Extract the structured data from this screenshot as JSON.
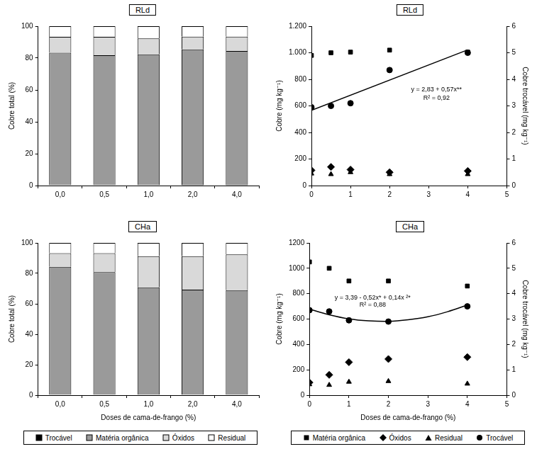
{
  "chart_data": [
    {
      "type": "bar",
      "title": "RLd",
      "stacked": true,
      "grid": false,
      "categories": [
        "0,0",
        "0,5",
        "1,0",
        "2,0",
        "4,0"
      ],
      "y_label": "Cobre total (%)",
      "ylim": [
        0,
        100
      ],
      "yticks": [
        0,
        20,
        40,
        60,
        80,
        100
      ],
      "series": [
        {
          "name": "Trocável",
          "color": "#000000",
          "values": [
            0.3,
            0.3,
            0.3,
            0.4,
            0.5
          ]
        },
        {
          "name": "Matéria orgânica",
          "color": "#9a9a9a",
          "values": [
            83,
            81.5,
            82,
            85,
            84
          ]
        },
        {
          "name": "Óxidos",
          "color": "#d9d9d9",
          "values": [
            10,
            11.5,
            10,
            8,
            9
          ]
        },
        {
          "name": "Residual",
          "color": "#ffffff",
          "values": [
            6.7,
            6.7,
            7.7,
            6.6,
            6.5
          ]
        }
      ]
    },
    {
      "type": "scatter",
      "title": "RLd",
      "grid": false,
      "x": [
        0,
        0.5,
        1,
        2,
        4
      ],
      "xlim": [
        0,
        5
      ],
      "xticks": [
        0,
        1,
        2,
        3,
        4,
        5
      ],
      "y_label": "Cobre (mg kg⁻¹)",
      "ylim": [
        0,
        1200
      ],
      "yticks": [
        0,
        200,
        400,
        600,
        800,
        {
          "value": 1000,
          "label": "1.000"
        },
        {
          "value": 1200,
          "label": "1.200"
        }
      ],
      "y2_label": "Cobre trocável (mg kg⁻¹)",
      "y2lim": [
        0,
        6
      ],
      "y2ticks": [
        0,
        1,
        2,
        3,
        4,
        5,
        6
      ],
      "series": [
        {
          "name": "Matéria orgânica",
          "color": "#000000",
          "marker": "square",
          "values": [
            980,
            1000,
            1005,
            1020,
            1005
          ]
        },
        {
          "name": "Óxidos",
          "color": "#000000",
          "marker": "diamond",
          "values": [
            115,
            140,
            120,
            100,
            110
          ]
        },
        {
          "name": "Residual",
          "color": "#000000",
          "marker": "triangle",
          "values": [
            90,
            85,
            100,
            85,
            85
          ]
        },
        {
          "name": "Trocável",
          "color": "#000000",
          "marker": "circle",
          "axis": "y2",
          "values": [
            2.95,
            3.0,
            3.1,
            4.35,
            5.0
          ]
        },
        {
          "type": "line",
          "color": "#000000",
          "line_style": "solid",
          "axis": "y2",
          "x": [
            0,
            4
          ],
          "values": [
            2.83,
            5.11
          ]
        }
      ],
      "annotations": [
        {
          "text": "y = 2,83 + 0,57x**",
          "x": 3.2,
          "y": 3.6,
          "axis": "y2"
        },
        {
          "text": "R² = 0,92",
          "x": 3.2,
          "y": 3.3,
          "axis": "y2"
        }
      ]
    },
    {
      "type": "bar",
      "title": "CHa",
      "stacked": true,
      "grid": false,
      "categories": [
        "0,0",
        "0,5",
        "1,0",
        "2,0",
        "4,0"
      ],
      "x_label": "Doses de cama-de-frango (%)",
      "y_label": "Cobre total (%)",
      "ylim": [
        0,
        100
      ],
      "yticks": [
        0,
        20,
        40,
        60,
        80,
        100
      ],
      "series": [
        {
          "name": "Trocável",
          "color": "#000000",
          "values": [
            0.3,
            0.3,
            0.3,
            0.3,
            0.4
          ]
        },
        {
          "name": "Matéria orgânica",
          "color": "#9a9a9a",
          "values": [
            84,
            80.5,
            70.5,
            69,
            68.5
          ]
        },
        {
          "name": "Óxidos",
          "color": "#d9d9d9",
          "values": [
            9,
            12.5,
            20.5,
            22,
            23.5
          ]
        },
        {
          "name": "Residual",
          "color": "#ffffff",
          "values": [
            6.7,
            6.7,
            8.7,
            8.7,
            7.6
          ]
        }
      ]
    },
    {
      "type": "scatter",
      "title": "CHa",
      "grid": false,
      "x": [
        0,
        0.5,
        1,
        2,
        4
      ],
      "xlim": [
        0,
        5
      ],
      "xticks": [
        0,
        1,
        2,
        3,
        4,
        5
      ],
      "x_label": "Doses de cama-de-frango (%)",
      "y_label": "Cobre (mg kg⁻¹)",
      "ylim": [
        0,
        1200
      ],
      "yticks": [
        0,
        200,
        400,
        600,
        800,
        1000,
        1200
      ],
      "y2_label": "Cobre trocável (mg kg⁻¹)",
      "y2lim": [
        0,
        6
      ],
      "y2ticks": [
        0,
        1,
        2,
        3,
        4,
        5,
        6
      ],
      "series": [
        {
          "name": "Matéria orgânica",
          "color": "#000000",
          "marker": "square",
          "values": [
            1050,
            1000,
            900,
            900,
            860
          ]
        },
        {
          "name": "Óxidos",
          "color": "#000000",
          "marker": "diamond",
          "values": [
            100,
            160,
            260,
            285,
            300
          ]
        },
        {
          "name": "Residual",
          "color": "#000000",
          "marker": "triangle",
          "values": [
            85,
            80,
            105,
            110,
            90
          ]
        },
        {
          "name": "Trocável",
          "color": "#000000",
          "marker": "circle",
          "axis": "y2",
          "values": [
            3.35,
            3.3,
            2.95,
            2.9,
            3.5
          ]
        },
        {
          "type": "line",
          "color": "#000000",
          "line_style": "solid",
          "axis": "y2",
          "x": [
            0,
            0.5,
            1,
            1.5,
            2,
            2.5,
            3,
            3.5,
            4
          ],
          "values": [
            3.39,
            3.17,
            3.01,
            2.93,
            2.91,
            2.97,
            3.09,
            3.29,
            3.55
          ]
        }
      ],
      "annotations": [
        {
          "text": "y = 3,39 - 0,52x* + 0,14x ²*",
          "x": 1.6,
          "y": 3.85,
          "axis": "y2"
        },
        {
          "text": "R² = 0,88",
          "x": 1.6,
          "y": 3.55,
          "axis": "y2"
        }
      ]
    }
  ]
}
